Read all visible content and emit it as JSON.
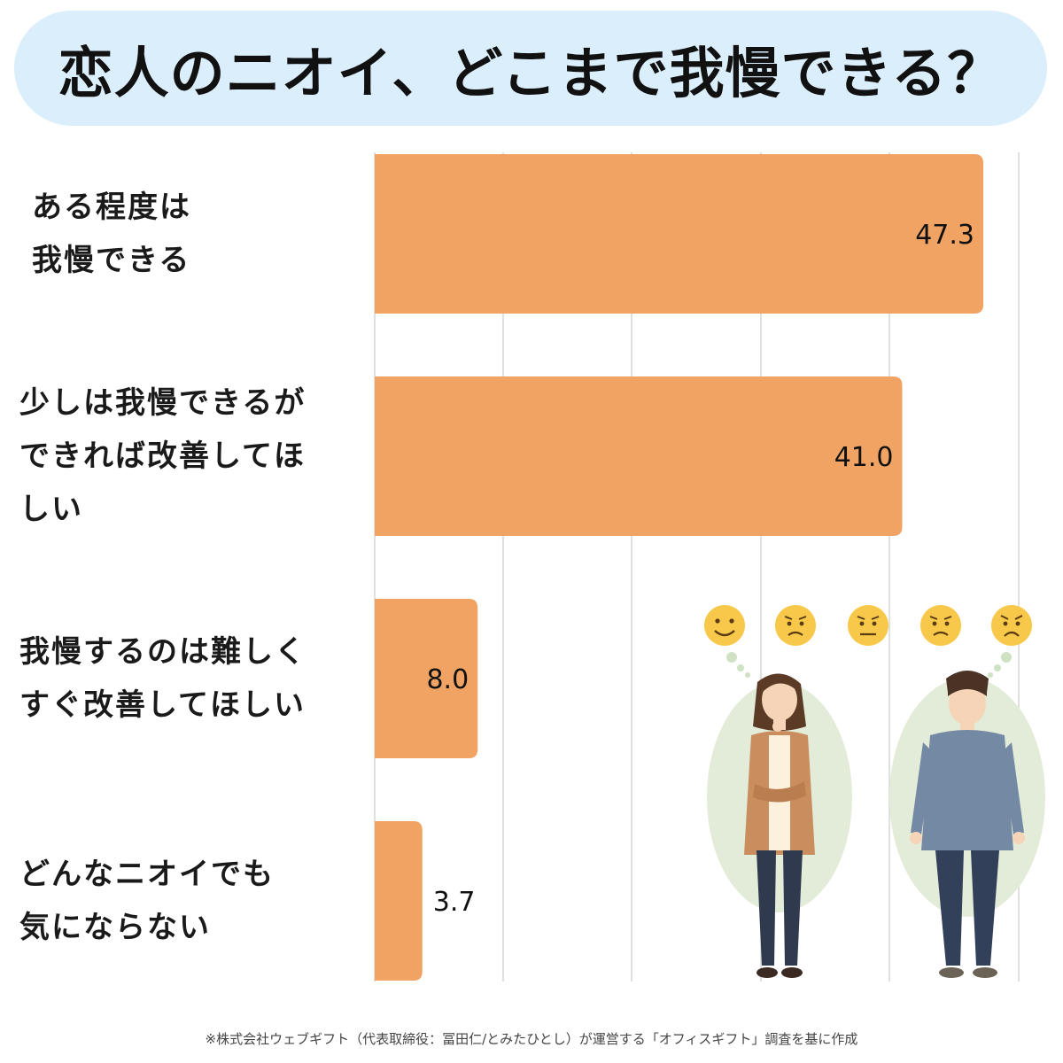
{
  "title": "恋人のニオイ、どこまで我慢できる？",
  "chart_data": {
    "type": "bar",
    "orientation": "horizontal",
    "categories": [
      "ある程度は\n我慢できる",
      "少しは我慢できるが\nできれば改善してほ\nしい",
      "我慢するのは難しく\nすぐ改善してほしい",
      "どんなニオイでも\n気にならない"
    ],
    "values": [
      47.3,
      41.0,
      8.0,
      3.7
    ],
    "value_labels": [
      "47.3",
      "41.0",
      "8.0",
      "3.7"
    ],
    "xlim": [
      0,
      50
    ],
    "grid": true,
    "bar_color": "#f0a363"
  },
  "footnote": "※株式会社ウェブギフト（代表取締役：冨田仁/とみたひとし）が運営する「オフィスギフト」調査を基に作成",
  "illustration": {
    "emojis": [
      "smile-face-icon",
      "worried-face-icon",
      "uneasy-face-icon",
      "worried-face-icon",
      "sad-face-icon"
    ]
  }
}
